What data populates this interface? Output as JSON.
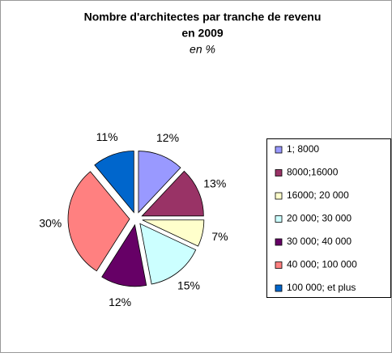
{
  "chart_data": {
    "type": "pie",
    "title": [
      "Nombre d'architectes par tranche de revenu",
      "en 2009"
    ],
    "subtitle": "en %",
    "categories": [
      "1; 8000",
      "8000;16000",
      "16000; 20 000",
      "20 000; 30 000",
      "30 000; 40 000",
      "40 000; 100 000",
      "100 000; et plus"
    ],
    "values": [
      12,
      13,
      7,
      15,
      12,
      30,
      11
    ],
    "value_labels": [
      "12%",
      "13%",
      "7%",
      "15%",
      "12%",
      "30%",
      "11%"
    ],
    "colors": [
      "#9999ff",
      "#993366",
      "#ffffcc",
      "#ccffff",
      "#660066",
      "#ff8080",
      "#0066cc"
    ],
    "legend": "right"
  }
}
